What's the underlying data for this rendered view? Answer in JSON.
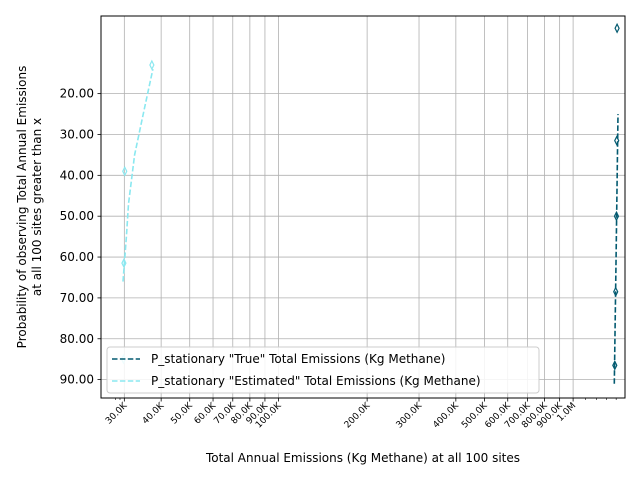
{
  "chart_data": {
    "type": "line",
    "title": "",
    "xlabel": "Total Annual Emissions (Kg Methane) at all 100 sites",
    "ylabel_lines": [
      "Probability of observing Total Annual Emissions",
      "at all 100 sites greater than x"
    ],
    "x_scale": "log",
    "x_range": [
      25000,
      1500000
    ],
    "y_inverted": true,
    "y_range": [
      1.0,
      94.5
    ],
    "grid": true,
    "legend_position": "lower-center",
    "x_ticks": [
      {
        "value": 30000,
        "label": "30.0K"
      },
      {
        "value": 40000,
        "label": "40.0K"
      },
      {
        "value": 50000,
        "label": "50.0K"
      },
      {
        "value": 60000,
        "label": "60.0K"
      },
      {
        "value": 70000,
        "label": "70.0K"
      },
      {
        "value": 80000,
        "label": "80.0K"
      },
      {
        "value": 90000,
        "label": "90.0K"
      },
      {
        "value": 100000,
        "label": "100.0K"
      },
      {
        "value": 200000,
        "label": "200.0K"
      },
      {
        "value": 300000,
        "label": "300.0K"
      },
      {
        "value": 400000,
        "label": "400.0K"
      },
      {
        "value": 500000,
        "label": "500.0K"
      },
      {
        "value": 600000,
        "label": "600.0K"
      },
      {
        "value": 700000,
        "label": "700.0K"
      },
      {
        "value": 800000,
        "label": "800.0K"
      },
      {
        "value": 900000,
        "label": "900.0K"
      },
      {
        "value": 1000000,
        "label": "1.0M"
      }
    ],
    "y_ticks": [
      {
        "value": 20,
        "label": "20.00"
      },
      {
        "value": 30,
        "label": "30.00"
      },
      {
        "value": 40,
        "label": "40.00"
      },
      {
        "value": 50,
        "label": "50.00"
      },
      {
        "value": 60,
        "label": "60.00"
      },
      {
        "value": 70,
        "label": "70.00"
      },
      {
        "value": 80,
        "label": "80.00"
      },
      {
        "value": 90,
        "label": "90.00"
      }
    ],
    "series": [
      {
        "name": "P_stationary \"True\" Total Emissions (Kg Methane)",
        "color": "#035a70",
        "line": {
          "x": [
            1380000,
            1400000,
            1420000
          ],
          "y": [
            91,
            58,
            25
          ]
        },
        "markers": {
          "x": [
            1385000,
            1395000,
            1403000,
            1406000,
            1410000
          ],
          "y": [
            86.5,
            68.5,
            50,
            31.5,
            4
          ]
        }
      },
      {
        "name": "P_stationary \"Estimated\" Total Emissions (Kg Methane)",
        "color": "#8ae8f0",
        "line": {
          "x": [
            29700,
            30500,
            31000,
            32500,
            35000,
            37500
          ],
          "y": [
            66,
            55,
            47,
            35,
            24,
            14
          ]
        },
        "markers": {
          "x": [
            29800,
            29900,
            30100,
            37200
          ],
          "y": [
            85,
            61.5,
            39,
            13
          ]
        }
      }
    ]
  }
}
